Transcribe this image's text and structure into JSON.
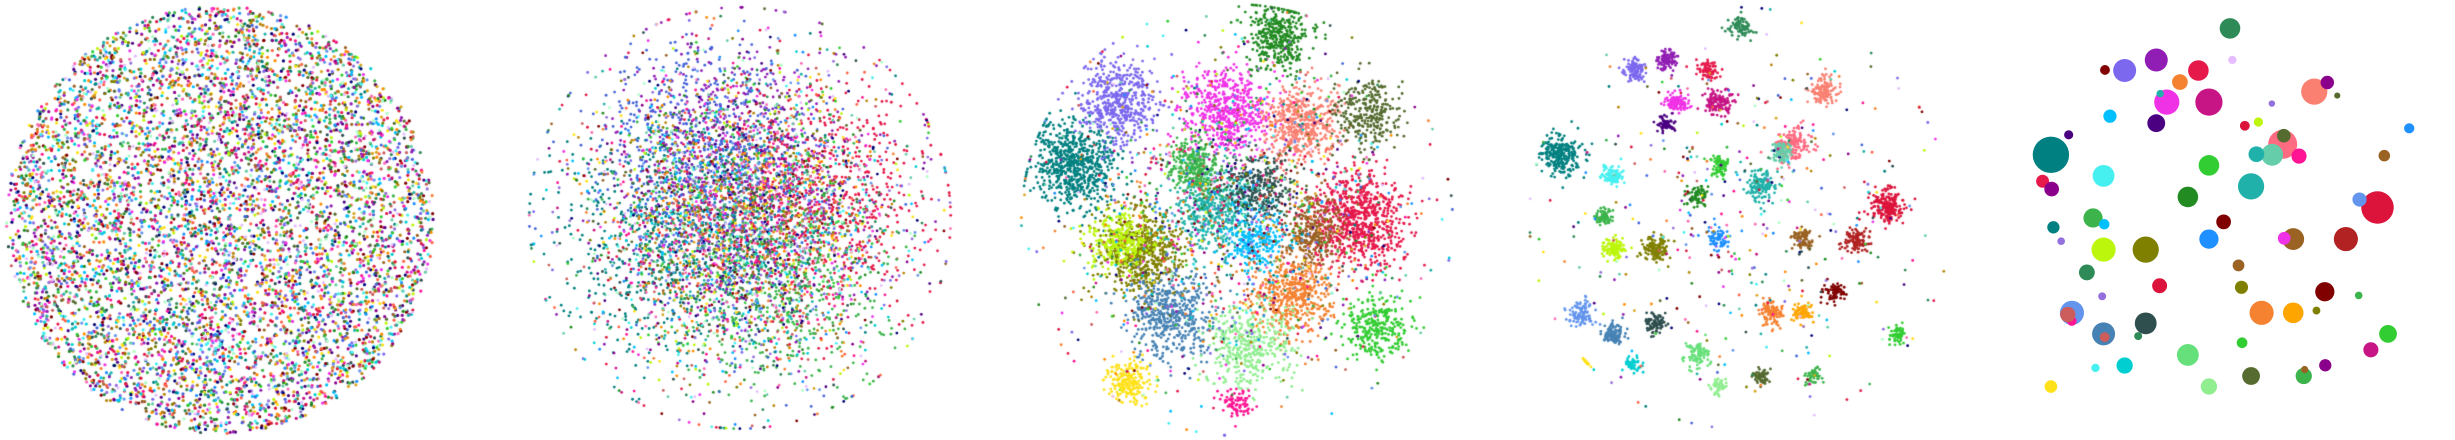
{
  "figure": {
    "background": "#ffffff"
  },
  "palette": [
    "#e6194b",
    "#3cb44b",
    "#ffe119",
    "#4363d8",
    "#f58231",
    "#911eb4",
    "#46f0f0",
    "#f032e6",
    "#bcf60c",
    "#008080",
    "#e6beff",
    "#9a6324",
    "#800000",
    "#aaffc3",
    "#808000",
    "#000075",
    "#2f4f4f",
    "#228b22",
    "#ff1493",
    "#1e90ff",
    "#ff8c00",
    "#8b008b",
    "#20b2aa",
    "#dc143c",
    "#6495ed",
    "#32cd32",
    "#b8860b",
    "#ff69b4",
    "#4b0082",
    "#00ced1",
    "#556b2f",
    "#c71585",
    "#7b68ee",
    "#66cdaa",
    "#cd5c5c",
    "#2e8b57",
    "#daa520",
    "#00bfff",
    "#9370db",
    "#ff6347"
  ],
  "chart_data": [
    {
      "type": "scatter",
      "title": "",
      "xlabel": "",
      "ylabel": "",
      "axes_visible": false,
      "clusters": [
        {
          "center": [
            0.0,
            0.0
          ],
          "spread": 1.0,
          "count": 7000,
          "shape": "uniform-disk"
        }
      ]
    },
    {
      "type": "scatter",
      "title": "",
      "xlabel": "",
      "ylabel": "",
      "axes_visible": false,
      "clusters": [
        {
          "center": [
            -0.35,
            -0.1
          ],
          "spread": 0.55,
          "color": "#008080",
          "count": 600
        },
        {
          "center": [
            0.0,
            0.3
          ],
          "spread": 0.55,
          "color": "#911eb4",
          "count": 500
        },
        {
          "center": [
            0.4,
            0.1
          ],
          "spread": 0.5,
          "color": "#e6194b",
          "count": 600
        },
        {
          "center": [
            0.2,
            -0.3
          ],
          "spread": 0.5,
          "color": "#3cb44b",
          "count": 500
        },
        {
          "center": [
            -0.2,
            0.35
          ],
          "spread": 0.5,
          "color": "#4363d8",
          "count": 500
        },
        {
          "center": [
            0.0,
            0.0
          ],
          "spread": 0.7,
          "color": "mixed",
          "count": 4000
        }
      ]
    },
    {
      "type": "scatter",
      "title": "",
      "xlabel": "",
      "ylabel": "",
      "axes_visible": false,
      "clusters": [
        {
          "center": [
            -0.75,
            0.25
          ],
          "spread": 0.2,
          "color": "#008080",
          "count": 700
        },
        {
          "center": [
            -0.55,
            0.55
          ],
          "spread": 0.18,
          "color": "#7b68ee",
          "count": 500
        },
        {
          "center": [
            -0.05,
            0.5
          ],
          "spread": 0.2,
          "color": "#f032e6",
          "count": 600
        },
        {
          "center": [
            0.3,
            0.45
          ],
          "spread": 0.17,
          "color": "#fa8072",
          "count": 500
        },
        {
          "center": [
            0.2,
            0.85
          ],
          "spread": 0.15,
          "color": "#228b22",
          "count": 400
        },
        {
          "center": [
            0.55,
            0.0
          ],
          "spread": 0.22,
          "color": "#e6194b",
          "count": 800
        },
        {
          "center": [
            -0.45,
            -0.15
          ],
          "spread": 0.2,
          "color": "#808000",
          "count": 600
        },
        {
          "center": [
            -0.55,
            -0.1
          ],
          "spread": 0.15,
          "color": "#bcf60c",
          "count": 300
        },
        {
          "center": [
            -0.3,
            -0.45
          ],
          "spread": 0.2,
          "color": "#4682b4",
          "count": 500
        },
        {
          "center": [
            0.25,
            -0.35
          ],
          "spread": 0.18,
          "color": "#f58231",
          "count": 500
        },
        {
          "center": [
            0.05,
            -0.6
          ],
          "spread": 0.2,
          "color": "#90ee90",
          "count": 400
        },
        {
          "center": [
            -0.5,
            -0.75
          ],
          "spread": 0.1,
          "color": "#ffe119",
          "count": 200
        },
        {
          "center": [
            0.65,
            -0.5
          ],
          "spread": 0.15,
          "color": "#32cd32",
          "count": 300
        },
        {
          "center": [
            -0.1,
            0.05
          ],
          "spread": 0.2,
          "color": "#20b2aa",
          "count": 500
        },
        {
          "center": [
            0.1,
            0.15
          ],
          "spread": 0.15,
          "color": "#2f4f4f",
          "count": 300
        },
        {
          "center": [
            0.35,
            -0.05
          ],
          "spread": 0.15,
          "color": "#9a6324",
          "count": 300
        },
        {
          "center": [
            -0.2,
            0.25
          ],
          "spread": 0.12,
          "color": "#3cb44b",
          "count": 300
        },
        {
          "center": [
            0.1,
            -0.1
          ],
          "spread": 0.15,
          "color": "#00bfff",
          "count": 250
        },
        {
          "center": [
            0.6,
            0.5
          ],
          "spread": 0.15,
          "color": "#556b2f",
          "count": 300
        },
        {
          "center": [
            0.0,
            -0.85
          ],
          "spread": 0.07,
          "color": "#ff1493",
          "count": 80
        },
        {
          "center": [
            0.0,
            0.0
          ],
          "spread": 0.75,
          "color": "mixed",
          "count": 1200
        }
      ]
    },
    {
      "type": "scatter",
      "title": "",
      "xlabel": "",
      "ylabel": "",
      "axes_visible": false,
      "clusters": [
        {
          "center": [
            -0.85,
            0.3
          ],
          "spread": 0.09,
          "color": "#008080",
          "count": 250
        },
        {
          "center": [
            -0.6,
            0.2
          ],
          "spread": 0.05,
          "color": "#46f0f0",
          "count": 90
        },
        {
          "center": [
            -0.5,
            0.7
          ],
          "spread": 0.05,
          "color": "#7b68ee",
          "count": 100
        },
        {
          "center": [
            -0.35,
            0.75
          ],
          "spread": 0.05,
          "color": "#911eb4",
          "count": 100
        },
        {
          "center": [
            -0.15,
            0.7
          ],
          "spread": 0.05,
          "color": "#e6194b",
          "count": 80
        },
        {
          "center": [
            -0.1,
            0.55
          ],
          "spread": 0.07,
          "color": "#c71585",
          "count": 140
        },
        {
          "center": [
            -0.3,
            0.55
          ],
          "spread": 0.05,
          "color": "#f032e6",
          "count": 120
        },
        {
          "center": [
            -0.35,
            0.45
          ],
          "spread": 0.04,
          "color": "#4b0082",
          "count": 60
        },
        {
          "center": [
            0.0,
            0.9
          ],
          "spread": 0.05,
          "color": "#2e8b57",
          "count": 80
        },
        {
          "center": [
            0.25,
            0.35
          ],
          "spread": 0.08,
          "color": "#ff6b81",
          "count": 160
        },
        {
          "center": [
            0.4,
            0.6
          ],
          "spread": 0.06,
          "color": "#fa8072",
          "count": 130
        },
        {
          "center": [
            -0.6,
            -0.15
          ],
          "spread": 0.05,
          "color": "#bcf60c",
          "count": 110
        },
        {
          "center": [
            -0.4,
            -0.15
          ],
          "spread": 0.06,
          "color": "#808000",
          "count": 130
        },
        {
          "center": [
            -0.65,
            0.0
          ],
          "spread": 0.04,
          "color": "#3cb44b",
          "count": 70
        },
        {
          "center": [
            -0.1,
            0.25
          ],
          "spread": 0.05,
          "color": "#32cd32",
          "count": 80
        },
        {
          "center": [
            0.1,
            0.15
          ],
          "spread": 0.07,
          "color": "#20b2aa",
          "count": 130
        },
        {
          "center": [
            0.2,
            0.3
          ],
          "spread": 0.05,
          "color": "#66cdaa",
          "count": 90
        },
        {
          "center": [
            -0.2,
            0.1
          ],
          "spread": 0.05,
          "color": "#228b22",
          "count": 80
        },
        {
          "center": [
            -0.1,
            -0.1
          ],
          "spread": 0.05,
          "color": "#1e90ff",
          "count": 70
        },
        {
          "center": [
            -0.75,
            -0.45
          ],
          "spread": 0.06,
          "color": "#6495ed",
          "count": 110
        },
        {
          "center": [
            -0.6,
            -0.55
          ],
          "spread": 0.05,
          "color": "#4682b4",
          "count": 100
        },
        {
          "center": [
            -0.4,
            -0.5
          ],
          "spread": 0.05,
          "color": "#2f4f4f",
          "count": 90
        },
        {
          "center": [
            -0.5,
            -0.7
          ],
          "spread": 0.04,
          "color": "#00ced1",
          "count": 50
        },
        {
          "center": [
            0.7,
            0.05
          ],
          "spread": 0.08,
          "color": "#dc143c",
          "count": 200
        },
        {
          "center": [
            0.55,
            -0.1
          ],
          "spread": 0.06,
          "color": "#b22222",
          "count": 110
        },
        {
          "center": [
            0.3,
            -0.1
          ],
          "spread": 0.05,
          "color": "#9a6324",
          "count": 90
        },
        {
          "center": [
            0.15,
            -0.45
          ],
          "spread": 0.06,
          "color": "#f58231",
          "count": 110
        },
        {
          "center": [
            0.3,
            -0.45
          ],
          "spread": 0.05,
          "color": "#ffa500",
          "count": 80
        },
        {
          "center": [
            0.45,
            -0.35
          ],
          "spread": 0.05,
          "color": "#800000",
          "count": 70
        },
        {
          "center": [
            -0.2,
            -0.65
          ],
          "spread": 0.06,
          "color": "#66e07a",
          "count": 90
        },
        {
          "center": [
            -0.1,
            -0.8
          ],
          "spread": 0.04,
          "color": "#90ee90",
          "count": 50
        },
        {
          "center": [
            0.1,
            -0.75
          ],
          "spread": 0.04,
          "color": "#556b2f",
          "count": 60
        },
        {
          "center": [
            0.35,
            -0.75
          ],
          "spread": 0.04,
          "color": "#3cb44b",
          "count": 50
        },
        {
          "center": [
            0.75,
            -0.55
          ],
          "spread": 0.04,
          "color": "#32cd32",
          "count": 60
        },
        {
          "center": [
            -0.85,
            -0.8
          ],
          "spread": 0.03,
          "color": "#ffe119",
          "count": 30
        },
        {
          "center": [
            0.0,
            0.0
          ],
          "spread": 0.85,
          "color": "mixed",
          "count": 400
        }
      ]
    },
    {
      "type": "scatter",
      "title": "",
      "xlabel": "",
      "ylabel": "",
      "axes_visible": false,
      "clusters": []
    }
  ]
}
